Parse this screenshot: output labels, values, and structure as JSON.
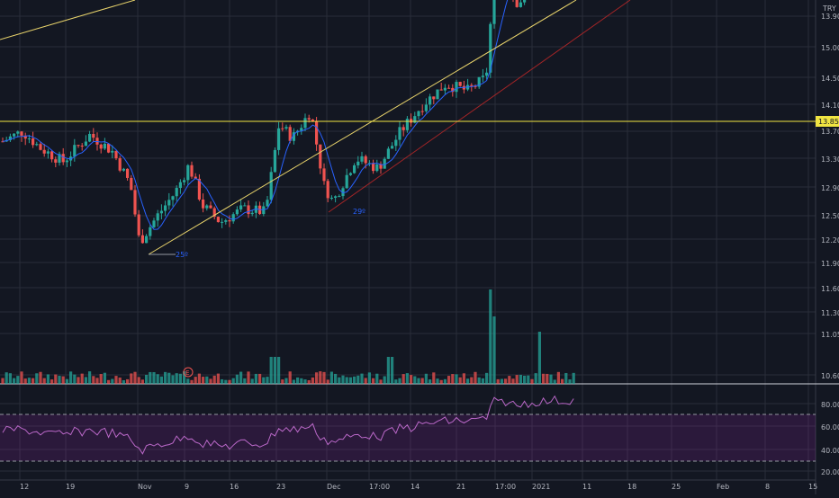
{
  "colors": {
    "background": "#131722",
    "grid": "#2a2e39",
    "up": "#26a69a",
    "down": "#ef5350",
    "ma": "#2962ff",
    "trend": "#e8d36b",
    "level": "#f0e442",
    "rsi": "#9c27b0",
    "text": "#b2b5be"
  },
  "price_scale": {
    "currency": "TRY",
    "ticks": [
      "13.90",
      "15.00",
      "14.50",
      "14.10",
      "13.70",
      "13.30",
      "12.90",
      "12.50",
      "12.20",
      "11.90",
      "11.60",
      "11.30",
      "11.05",
      "10.60"
    ],
    "level_label": "13.85"
  },
  "rsi_scale": {
    "ticks": [
      "80.00",
      "60.00",
      "40.00",
      "20.00"
    ]
  },
  "time_axis": {
    "labels": [
      "12",
      "19",
      "Nov",
      "9",
      "16",
      "23",
      "Dec",
      "17:00",
      "14",
      "21",
      "17:00",
      "2021",
      "11",
      "18",
      "25",
      "Feb",
      "8",
      "15"
    ]
  },
  "annotations": {
    "angle_a": "25º",
    "angle_b": "29º",
    "earnings_marker": "E"
  },
  "chart_data": {
    "type": "candlestick",
    "symbol_currency": "TRY",
    "x": [
      "12",
      "19",
      "Nov",
      "9",
      "16",
      "23",
      "Dec",
      "14",
      "21",
      "2021",
      "11"
    ],
    "ohlc_approx": [
      {
        "date": "12",
        "close": 13.6
      },
      {
        "date": "19",
        "close": 13.5
      },
      {
        "date": "Nov",
        "close": 12.1
      },
      {
        "date": "9",
        "close": 12.7
      },
      {
        "date": "16",
        "close": 12.5
      },
      {
        "date": "23",
        "close": 13.9
      },
      {
        "date": "Dec",
        "close": 12.6
      },
      {
        "date": "14",
        "close": 13.6
      },
      {
        "date": "21",
        "close": 14.3
      },
      {
        "date": "2021",
        "close": 15.7
      },
      {
        "date": "11",
        "close": 15.9
      }
    ],
    "horizontal_level": 13.85,
    "rsi_levels": [
      70,
      30
    ]
  }
}
